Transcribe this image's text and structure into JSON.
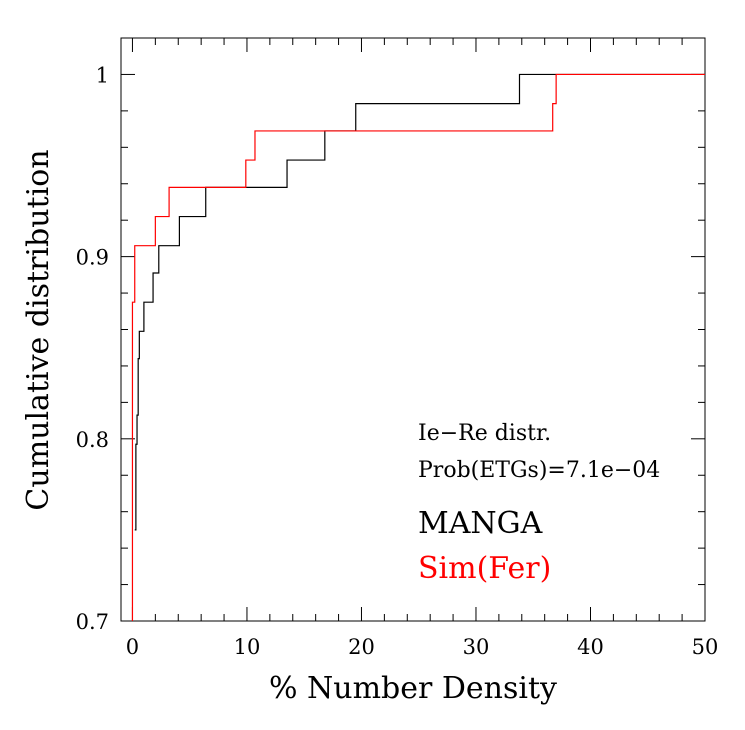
{
  "chart_data": {
    "type": "line",
    "step": true,
    "xlabel": "% Number Density",
    "ylabel": "Cumulative distribution",
    "xlim": [
      -1,
      50
    ],
    "ylim": [
      0.7,
      1.02
    ],
    "x_ticks": [
      0,
      10,
      20,
      30,
      40,
      50
    ],
    "y_ticks": [
      0.7,
      0.8,
      0.9,
      1.0
    ],
    "x_tick_labels": [
      "0",
      "10",
      "20",
      "30",
      "40",
      "50"
    ],
    "y_tick_labels": [
      "0.7",
      "0.8",
      "0.9",
      "1"
    ],
    "annotations": [
      "Ie−Re distr.",
      "Prob(ETGs)=7.1e−04"
    ],
    "series": [
      {
        "name": "MANGA",
        "color": "#000000",
        "points": [
          [
            0.2,
            0.75
          ],
          [
            0.3,
            0.797
          ],
          [
            0.4,
            0.813
          ],
          [
            0.5,
            0.844
          ],
          [
            0.6,
            0.859
          ],
          [
            0.8,
            0.859
          ],
          [
            1.0,
            0.875
          ],
          [
            1.7,
            0.875
          ],
          [
            1.8,
            0.891
          ],
          [
            2.2,
            0.891
          ],
          [
            2.3,
            0.906
          ],
          [
            4.0,
            0.906
          ],
          [
            4.1,
            0.922
          ],
          [
            6.3,
            0.922
          ],
          [
            6.4,
            0.938
          ],
          [
            13.4,
            0.938
          ],
          [
            13.5,
            0.953
          ],
          [
            16.7,
            0.953
          ],
          [
            16.8,
            0.969
          ],
          [
            19.4,
            0.969
          ],
          [
            19.5,
            0.984
          ],
          [
            33.7,
            0.984
          ],
          [
            33.8,
            1.0
          ],
          [
            50,
            1.0
          ]
        ]
      },
      {
        "name": "Sim(Fer)",
        "color": "#ff0000",
        "points": [
          [
            0.0,
            0.7
          ],
          [
            0.0,
            0.875
          ],
          [
            0.2,
            0.875
          ],
          [
            0.2,
            0.906
          ],
          [
            2.0,
            0.906
          ],
          [
            2.0,
            0.922
          ],
          [
            3.2,
            0.922
          ],
          [
            3.2,
            0.938
          ],
          [
            9.9,
            0.938
          ],
          [
            9.9,
            0.953
          ],
          [
            10.7,
            0.953
          ],
          [
            10.7,
            0.969
          ],
          [
            36.7,
            0.969
          ],
          [
            36.7,
            0.984
          ],
          [
            37.0,
            0.984
          ],
          [
            37.0,
            1.0
          ],
          [
            50,
            1.0
          ]
        ]
      }
    ]
  }
}
